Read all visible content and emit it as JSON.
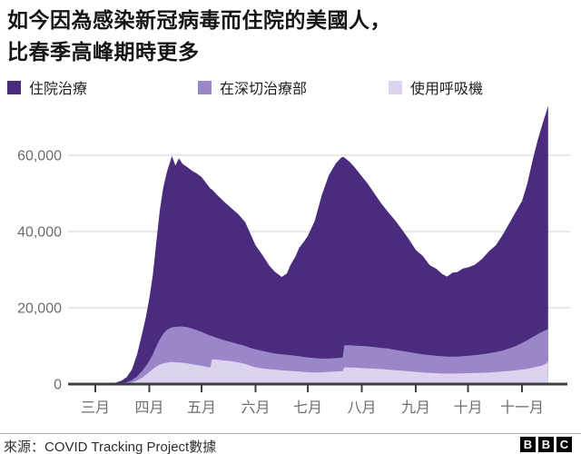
{
  "header": {
    "title_line1": "如今因為感染新冠病毒而住院的美國人，",
    "title_line2": "比春季高峰期時更多"
  },
  "legend": [
    {
      "label": "住院治療",
      "color": "#4a2b7e"
    },
    {
      "label": "在深切治療部",
      "color": "#9a87ca"
    },
    {
      "label": "使用呼吸機",
      "color": "#ded3ee"
    }
  ],
  "colors": {
    "grid": "#e2e2e2",
    "axis": "#3f3f3f",
    "tick_label": "#6d6d72",
    "background": "#ffffff"
  },
  "chart_data": {
    "type": "area",
    "title": "如今因為感染新冠病毒而住院的美國人，比春季高峰期時更多",
    "xlabel": "",
    "ylabel": "",
    "x_unit": "days since 2020-03-01",
    "ylim": [
      0,
      75000
    ],
    "grid": "horizontal",
    "legend_position": "top",
    "series": [
      {
        "name": "住院治療",
        "color": "#4a2b7e"
      },
      {
        "name": "在深切治療部",
        "color": "#9a87ca"
      },
      {
        "name": "使用呼吸機",
        "color": "#ded3ee"
      }
    ],
    "columns": [
      "day",
      "住院治療",
      "在深切治療部",
      "使用呼吸機"
    ],
    "rows": [
      [
        0,
        0,
        0,
        0
      ],
      [
        8,
        100,
        30,
        10
      ],
      [
        12,
        400,
        100,
        40
      ],
      [
        15,
        900,
        250,
        100
      ],
      [
        18,
        1800,
        500,
        220
      ],
      [
        21,
        3800,
        1000,
        450
      ],
      [
        24,
        7800,
        2000,
        950
      ],
      [
        27,
        13500,
        3500,
        1700
      ],
      [
        29,
        17500,
        4700,
        2400
      ],
      [
        31,
        22500,
        6100,
        3200
      ],
      [
        33,
        28500,
        7800,
        3900
      ],
      [
        35,
        37000,
        9800,
        4600
      ],
      [
        37,
        45500,
        11700,
        5100
      ],
      [
        39,
        51500,
        13200,
        5400
      ],
      [
        41,
        55500,
        14200,
        5600
      ],
      [
        44,
        59800,
        14900,
        5800
      ],
      [
        46,
        57300,
        15000,
        5700
      ],
      [
        48,
        59200,
        15100,
        5700
      ],
      [
        50,
        57800,
        15100,
        5600
      ],
      [
        53,
        56800,
        14900,
        5400
      ],
      [
        56,
        55800,
        14500,
        5200
      ],
      [
        58,
        55300,
        14200,
        5000
      ],
      [
        61,
        54300,
        13700,
        4800
      ],
      [
        64,
        52500,
        13100,
        4500
      ],
      [
        66,
        51300,
        12700,
        4300
      ],
      [
        67,
        51000,
        12600,
        6500
      ],
      [
        70,
        49600,
        12100,
        6400
      ],
      [
        74,
        47800,
        11500,
        6200
      ],
      [
        78,
        46200,
        11000,
        6000
      ],
      [
        82,
        44600,
        10500,
        5700
      ],
      [
        86,
        42500,
        10000,
        5300
      ],
      [
        89,
        39500,
        9500,
        4800
      ],
      [
        92,
        36400,
        9100,
        4400
      ],
      [
        96,
        33800,
        8700,
        4100
      ],
      [
        100,
        31000,
        8300,
        3900
      ],
      [
        103,
        29500,
        8000,
        3800
      ],
      [
        107,
        28100,
        7800,
        3600
      ],
      [
        110,
        29000,
        7700,
        3500
      ],
      [
        112,
        31200,
        7600,
        3450
      ],
      [
        115,
        33500,
        7400,
        3350
      ],
      [
        117,
        35700,
        7300,
        3300
      ],
      [
        120,
        37500,
        7100,
        3200
      ],
      [
        122,
        38800,
        7000,
        3100
      ],
      [
        126,
        42800,
        6800,
        3050
      ],
      [
        130,
        49500,
        6700,
        3100
      ],
      [
        134,
        54700,
        6700,
        3200
      ],
      [
        138,
        57800,
        6800,
        3300
      ],
      [
        141,
        59300,
        6900,
        3350
      ],
      [
        142,
        59600,
        7000,
        3400
      ],
      [
        143,
        59400,
        10200,
        4400
      ],
      [
        146,
        58300,
        10200,
        4350
      ],
      [
        149,
        56800,
        10100,
        4300
      ],
      [
        153,
        54500,
        10000,
        4200
      ],
      [
        156,
        52800,
        9900,
        4150
      ],
      [
        160,
        50200,
        9700,
        4050
      ],
      [
        164,
        47500,
        9500,
        3950
      ],
      [
        168,
        45200,
        9300,
        3800
      ],
      [
        172,
        43000,
        9000,
        3650
      ],
      [
        176,
        40600,
        8700,
        3500
      ],
      [
        180,
        38000,
        8400,
        3350
      ],
      [
        184,
        35200,
        8100,
        3200
      ],
      [
        188,
        33600,
        7800,
        3050
      ],
      [
        192,
        31200,
        7600,
        2950
      ],
      [
        196,
        30200,
        7400,
        2850
      ],
      [
        199,
        28900,
        7300,
        2800
      ],
      [
        202,
        28200,
        7200,
        2750
      ],
      [
        205,
        29200,
        7200,
        2750
      ],
      [
        208,
        29400,
        7200,
        2750
      ],
      [
        211,
        30300,
        7300,
        2800
      ],
      [
        214,
        30600,
        7400,
        2850
      ],
      [
        218,
        31300,
        7600,
        2900
      ],
      [
        222,
        32800,
        7800,
        2950
      ],
      [
        226,
        34800,
        8100,
        3050
      ],
      [
        230,
        36400,
        8400,
        3150
      ],
      [
        234,
        39200,
        8800,
        3300
      ],
      [
        238,
        42400,
        9400,
        3450
      ],
      [
        242,
        45600,
        10100,
        3650
      ],
      [
        245,
        48000,
        10800,
        3800
      ],
      [
        248,
        52500,
        11500,
        4000
      ],
      [
        251,
        58500,
        12300,
        4300
      ],
      [
        254,
        64000,
        13100,
        4600
      ],
      [
        257,
        68500,
        13800,
        4900
      ],
      [
        259,
        71500,
        14200,
        5400
      ],
      [
        260,
        73000,
        14500,
        6000
      ]
    ],
    "x_ticks": [
      {
        "day": 0,
        "label": "三月"
      },
      {
        "day": 31,
        "label": "四月"
      },
      {
        "day": 61,
        "label": "五月"
      },
      {
        "day": 92,
        "label": "六月"
      },
      {
        "day": 122,
        "label": "七月"
      },
      {
        "day": 153,
        "label": "八月"
      },
      {
        "day": 184,
        "label": "九月"
      },
      {
        "day": 214,
        "label": "十月"
      },
      {
        "day": 245,
        "label": "十一月"
      }
    ],
    "y_ticks": [
      {
        "value": 0,
        "label": "0"
      },
      {
        "value": 20000,
        "label": "20,000"
      },
      {
        "value": 40000,
        "label": "40,000"
      },
      {
        "value": 60000,
        "label": "60,000"
      }
    ]
  },
  "footer": {
    "source": "來源：COVID Tracking Project數據",
    "logo_blocks": [
      "B",
      "B",
      "C"
    ]
  }
}
